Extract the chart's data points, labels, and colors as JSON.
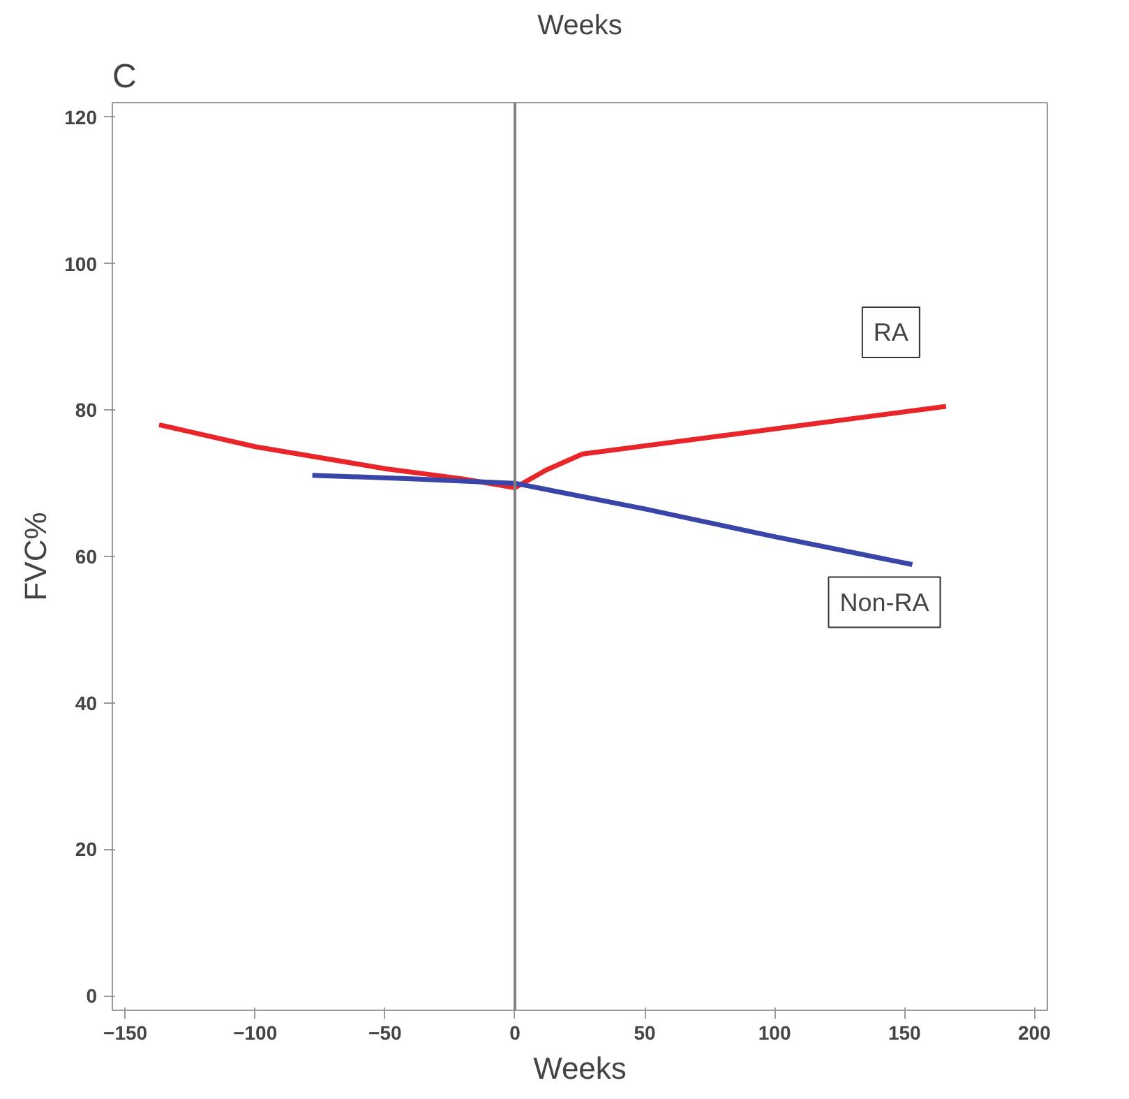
{
  "chart_data": {
    "type": "line",
    "title": "Weeks",
    "xlabel": "Weeks",
    "ylabel": "FVC%",
    "annotations": [
      "C"
    ],
    "xlim": [
      -155,
      205
    ],
    "xticks": [
      -150,
      -100,
      -50,
      0,
      50,
      100,
      150,
      200
    ],
    "ylim": [
      -2,
      122
    ],
    "yticks": [
      0,
      20,
      40,
      60,
      80,
      100,
      120
    ],
    "grid": false,
    "marker": "none",
    "line_style": "solid",
    "ref_lines": [
      {
        "axis": "x",
        "value": 0,
        "color": "#808080"
      }
    ],
    "series": [
      {
        "name": "RA",
        "color": "#e8262a",
        "x": [
          -137,
          -100,
          -50,
          -20,
          0,
          12,
          26,
          80,
          166
        ],
        "values": [
          78,
          75,
          72,
          70.6,
          69.4,
          71.8,
          74,
          76.5,
          80.5
        ]
      },
      {
        "name": "Non-RA",
        "color": "#3a45a8",
        "x": [
          -78,
          -40,
          0,
          50,
          100,
          153
        ],
        "values": [
          71.1,
          70.6,
          70,
          66.5,
          62.7,
          58.9
        ]
      }
    ]
  }
}
